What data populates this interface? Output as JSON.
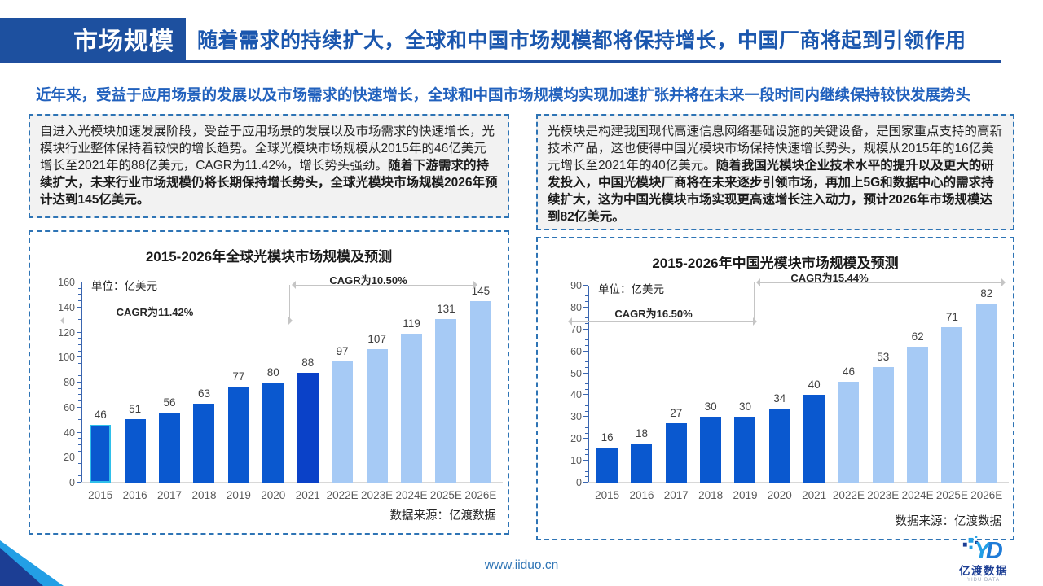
{
  "header": {
    "section_label": "市场规模",
    "title": "随着需求的持续扩大，全球和中国市场规模都将保持增长，中国厂商将起到引领作用"
  },
  "subtitle": "近年来，受益于应用场景的发展以及市场需求的快速增长，全球和中国市场规模均实现加速扩张并将在未来一段时间内继续保持较快发展势头",
  "left_panel": {
    "paragraph_normal": "自进入光模块加速发展阶段，受益于应用场景的发展以及市场需求的快速增长，光模块行业整体保持着较快的增长趋势。全球光模块市场规模从2015年的46亿美元增长至2021年的88亿美元，CAGR为11.42%，增长势头强劲。",
    "paragraph_bold": "随着下游需求的持续扩大，未来行业市场规模仍将长期保持增长势头，全球光模块市场规模2026年预计达到145亿美元。"
  },
  "right_panel": {
    "paragraph_normal": "光模块是构建我国现代高速信息网络基础设施的关键设备，是国家重点支持的高新技术产品，这也使得中国光模块市场保持快速增长势头，规模从2015年的16亿美元增长至2021年的40亿美元。",
    "paragraph_bold": "随着我国光模块企业技术水平的提升以及更大的研发投入，中国光模块厂商将在未来逐步引领市场，再加上5G和数据中心的需求持续扩大，这为中国光模块市场实现更高速增长注入动力，预计2026年市场规模达到82亿美元。"
  },
  "chart_data": [
    {
      "type": "bar",
      "title": "2015-2026年全球光模块市场规模及预测",
      "unit_label": "单位：亿美元",
      "categories": [
        "2015",
        "2016",
        "2017",
        "2018",
        "2019",
        "2020",
        "2021",
        "2022E",
        "2023E",
        "2024E",
        "2025E",
        "2026E"
      ],
      "values": [
        46,
        51,
        56,
        63,
        77,
        80,
        88,
        97,
        107,
        119,
        131,
        145
      ],
      "ylim": [
        0,
        160
      ],
      "y_tick_step": 20,
      "grid": "off",
      "cagr_left": "CAGR为11.42%",
      "cagr_right": "CAGR为10.50%",
      "source": "数据来源：亿渡数据",
      "notes": "2015-2021 actual bars dark blue, 2022E-2026E forecast bars light blue"
    },
    {
      "type": "bar",
      "title": "2015-2026年中国光模块市场规模及预测",
      "unit_label": "单位：亿美元",
      "categories": [
        "2015",
        "2016",
        "2017",
        "2018",
        "2019",
        "2020",
        "2021",
        "2022E",
        "2023E",
        "2024E",
        "2025E",
        "2026E"
      ],
      "values": [
        16,
        18,
        27,
        30,
        30,
        34,
        40,
        46,
        53,
        62,
        71,
        82
      ],
      "ylim": [
        0,
        90
      ],
      "y_tick_step": 10,
      "grid": "off",
      "cagr_left": "CAGR为16.50%",
      "cagr_right": "CAGR为15.44%",
      "source": "数据来源：亿渡数据",
      "notes": "2015-2021 actual bars dark blue, 2022E-2026E forecast bars light blue"
    }
  ],
  "footer": {
    "url": "www.iiduo.cn",
    "logo_text": "亿渡数据",
    "logo_subtext": "YIDU DATA"
  },
  "colors": {
    "header_box": "#1D509F",
    "header_title": "#1B57AE",
    "subtitle": "#2161BD",
    "bar_dark": "#0A58CF",
    "bar_dark_2021": "#0A41C8",
    "bar_forecast_light": "#A6CAF5",
    "bar_2015_border": "#2FBFEA",
    "box_border": "#2E74B5",
    "corner_light_blue": "#239FE5",
    "corner_navy": "#1C3E94"
  }
}
